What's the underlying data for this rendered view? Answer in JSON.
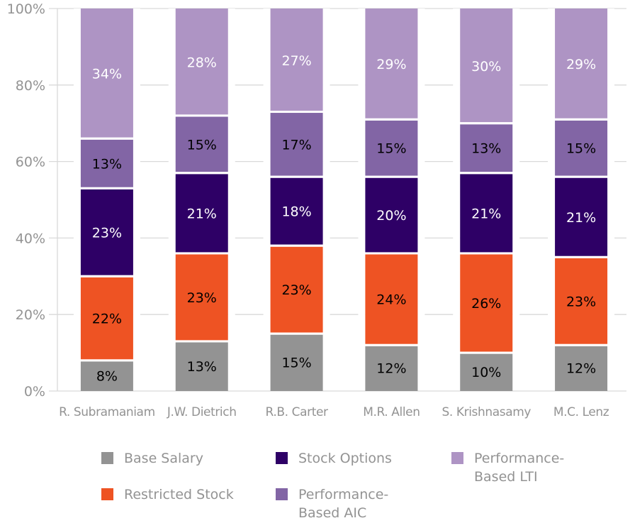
{
  "chart_data": {
    "type": "bar",
    "stacked": true,
    "title": "",
    "xlabel": "",
    "ylabel": "",
    "ylim": [
      0,
      100
    ],
    "yticks": [
      "0%",
      "20%",
      "40%",
      "60%",
      "80%",
      "100%"
    ],
    "ytick_values": [
      0,
      20,
      40,
      60,
      80,
      100
    ],
    "grid": true,
    "legend_position": "bottom",
    "categories": [
      "R. Subramaniam",
      "J.W. Dietrich",
      "R.B. Carter",
      "M.R. Allen",
      "S. Krishnasamy",
      "M.C. Lenz"
    ],
    "series": [
      {
        "name": "Base Salary",
        "color": "#939393",
        "label_color": "#000000",
        "values": [
          8,
          13,
          15,
          12,
          10,
          12
        ]
      },
      {
        "name": "Restricted Stock",
        "color": "#EE5323",
        "label_color": "#000000",
        "values": [
          22,
          23,
          23,
          24,
          26,
          23
        ]
      },
      {
        "name": "Stock Options",
        "color": "#2E0066",
        "label_color": "#ffffff",
        "values": [
          23,
          21,
          18,
          20,
          21,
          21
        ]
      },
      {
        "name": "Performance-Based AIC",
        "color": "#8265A5",
        "label_color": "#000000",
        "values": [
          13,
          15,
          17,
          15,
          13,
          15
        ]
      },
      {
        "name": "Performance-Based LTI",
        "color": "#AE94C4",
        "label_color": "#ffffff",
        "values": [
          34,
          28,
          27,
          29,
          30,
          29
        ]
      }
    ],
    "value_label_suffix": "%"
  },
  "legend": [
    {
      "label": "Base Salary",
      "color": "#939393"
    },
    {
      "label": "Stock Options",
      "color": "#2E0066"
    },
    {
      "label": "Performance-\nBased LTI",
      "color": "#AE94C4"
    },
    {
      "label": "Restricted Stock",
      "color": "#EE5323"
    },
    {
      "label": "Performance-\nBased AIC",
      "color": "#8265A5"
    }
  ]
}
